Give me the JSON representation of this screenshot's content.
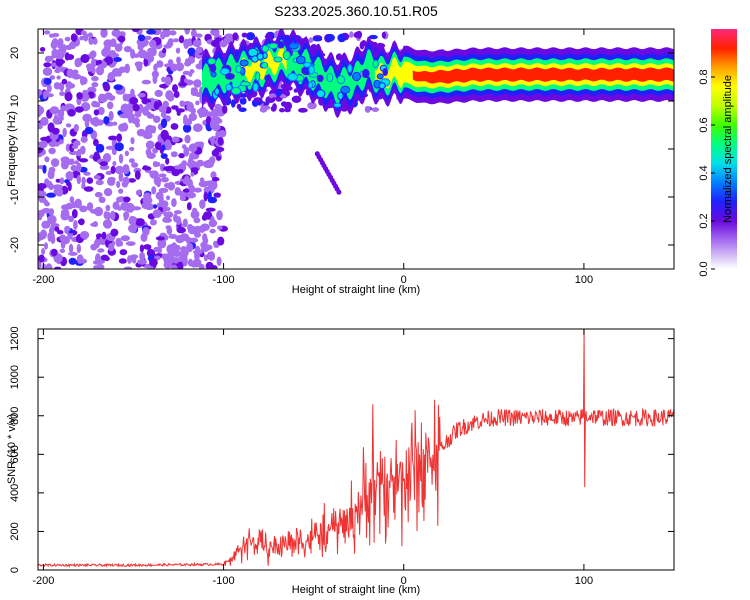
{
  "figure": {
    "title": "S233.2025.360.10.51.R05"
  },
  "chart_data": [
    {
      "type": "heatmap",
      "title": "S233.2025.360.10.51.R05",
      "xlabel": "Height of straight line (km)",
      "ylabel": "Frequency (Hz)",
      "xlim": [
        -203,
        150
      ],
      "ylim": [
        -25,
        25
      ],
      "xticks": [
        -200,
        -100,
        0,
        100
      ],
      "yticks": [
        -20,
        -10,
        0,
        10,
        20
      ],
      "colorbar": {
        "label": "Normalized spectral amplitude",
        "range": [
          0,
          1
        ],
        "ticks": [
          "0.0",
          "0.2",
          "0.4",
          "0.6",
          "0.8"
        ]
      },
      "ridge": {
        "description": "dominant frequency ridge",
        "x": [
          -112,
          -100,
          -80,
          -65,
          -50,
          -38,
          -28,
          -20,
          -12,
          -5,
          0,
          10,
          20,
          40,
          60,
          80,
          100,
          120,
          150
        ],
        "frequency_hz": [
          14,
          15.5,
          17,
          19,
          16,
          13,
          14,
          17,
          15,
          16,
          16,
          15,
          15,
          15.5,
          15.5,
          15.5,
          15.5,
          15.5,
          15.5
        ],
        "amplitude": [
          0.3,
          0.4,
          0.5,
          0.45,
          0.4,
          0.35,
          0.3,
          0.4,
          0.5,
          0.6,
          0.65,
          0.75,
          0.9,
          0.95,
          0.9,
          0.92,
          0.85,
          0.9,
          0.92
        ]
      },
      "noise_region": {
        "x_range": [
          -203,
          -100
        ],
        "frequency_range": [
          -25,
          25
        ]
      }
    },
    {
      "type": "line",
      "xlabel": "Height of straight line (km)",
      "ylabel": "SNR (10 * v/v)",
      "xlim": [
        -203,
        150
      ],
      "ylim": [
        0,
        1250
      ],
      "xticks": [
        -200,
        -100,
        0,
        100
      ],
      "yticks": [
        0,
        200,
        400,
        600,
        800,
        1000,
        1200
      ],
      "series": [
        {
          "name": "SNR",
          "color": "#ee3333",
          "x": [
            -203,
            -150,
            -100,
            -95,
            -90,
            -85,
            -80,
            -75,
            -70,
            -65,
            -60,
            -55,
            -50,
            -45,
            -40,
            -35,
            -30,
            -25,
            -20,
            -15,
            -10,
            -5,
            0,
            5,
            10,
            15,
            20,
            25,
            30,
            40,
            50,
            60,
            70,
            80,
            90,
            95,
            100,
            105,
            110,
            120,
            130,
            140,
            150
          ],
          "values": [
            25,
            25,
            30,
            60,
            120,
            150,
            130,
            110,
            120,
            140,
            160,
            150,
            170,
            190,
            210,
            240,
            260,
            330,
            380,
            420,
            450,
            470,
            480,
            520,
            540,
            580,
            620,
            680,
            730,
            770,
            790,
            790,
            790,
            790,
            790,
            780,
            800,
            800,
            790,
            790,
            790,
            790,
            795
          ],
          "spikes": [
            {
              "x": -17,
              "value": 860
            },
            {
              "x": 100,
              "value": 1250
            },
            {
              "x": 100.5,
              "value": 430
            }
          ]
        }
      ]
    }
  ]
}
